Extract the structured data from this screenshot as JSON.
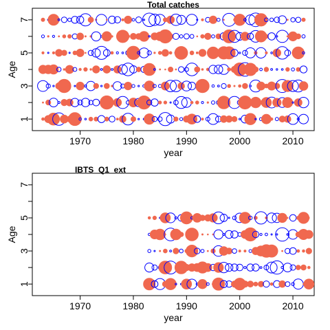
{
  "colors": {
    "positive": "#ff0000",
    "negative": "#0000ff",
    "positive_fill": "#F0684F"
  },
  "chart_data": [
    {
      "type": "scatter",
      "subtype": "bubble-residuals",
      "title": "Total catches",
      "xlabel": "year",
      "ylabel": "Age",
      "x_ticks": [
        "1970",
        "1980",
        "1990",
        "2000",
        "2010"
      ],
      "y_ticks": [
        "1",
        "3",
        "5",
        "7"
      ],
      "xlim": [
        1961,
        2014
      ],
      "ylim": [
        0.3,
        7.7
      ],
      "years": [
        1963,
        2012
      ],
      "ages": [
        1,
        2,
        3,
        4,
        5,
        6,
        7
      ],
      "seed": 11
    },
    {
      "type": "scatter",
      "subtype": "bubble-residuals",
      "title": "IBTS_Q1_ext",
      "xlabel": "year",
      "ylabel": "Age",
      "x_ticks": [
        "1970",
        "1980",
        "1990",
        "2000",
        "2010"
      ],
      "y_ticks": [
        "1",
        "3",
        "5",
        "7"
      ],
      "xlim": [
        1961,
        2014
      ],
      "ylim": [
        0.3,
        7.7
      ],
      "years": [
        1983,
        2013
      ],
      "ages": [
        1,
        2,
        3,
        4,
        5
      ],
      "seed": 29
    }
  ]
}
